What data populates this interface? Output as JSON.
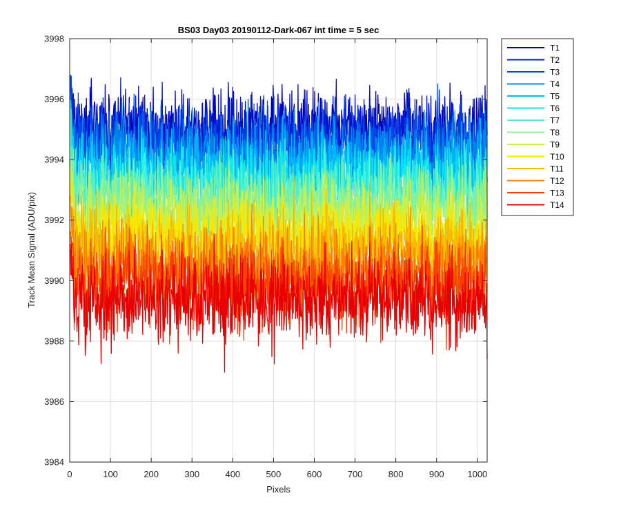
{
  "chart_data": {
    "type": "line",
    "title": "BS03 Day03 20190112-Dark-067 int time = 5 sec",
    "xlabel": "Pixels",
    "ylabel": "Track Mean Signal (ADU/pix)",
    "xlim": [
      0,
      1024
    ],
    "ylim": [
      3984,
      3998
    ],
    "xticks": [
      0,
      100,
      200,
      300,
      400,
      500,
      600,
      700,
      800,
      900,
      1000
    ],
    "yticks": [
      3984,
      3986,
      3988,
      3990,
      3992,
      3994,
      3996,
      3998
    ],
    "grid": true,
    "legend_position": "outside-top-right",
    "n_points": 1024,
    "series": [
      {
        "name": "T1",
        "color": "#0000B3",
        "mean": 3995.0,
        "spread": 0.75,
        "min": 3993.4,
        "max": 3997.5
      },
      {
        "name": "T2",
        "color": "#0018D0",
        "mean": 3994.8,
        "spread": 0.75,
        "min": 3993.2,
        "max": 3997.0
      },
      {
        "name": "T3",
        "color": "#0048E8",
        "mean": 3994.5,
        "spread": 0.75,
        "min": 3992.8,
        "max": 3996.8
      },
      {
        "name": "T4",
        "color": "#0088F0",
        "mean": 3994.1,
        "spread": 0.75,
        "min": 3992.4,
        "max": 3996.9
      },
      {
        "name": "T5",
        "color": "#00B8F8",
        "mean": 3993.7,
        "spread": 0.75,
        "min": 3992.0,
        "max": 3997.1
      },
      {
        "name": "T6",
        "color": "#10E8F0",
        "mean": 3993.3,
        "spread": 0.75,
        "min": 3991.6,
        "max": 3996.0
      },
      {
        "name": "T7",
        "color": "#58F0C8",
        "mean": 3992.9,
        "spread": 0.75,
        "min": 3991.1,
        "max": 3995.8
      },
      {
        "name": "T8",
        "color": "#90F090",
        "mean": 3992.5,
        "spread": 0.75,
        "min": 3990.7,
        "max": 3996.4
      },
      {
        "name": "T9",
        "color": "#C8F050",
        "mean": 3992.0,
        "spread": 0.75,
        "min": 3990.2,
        "max": 3995.2
      },
      {
        "name": "T10",
        "color": "#F8E800",
        "mean": 3991.5,
        "spread": 0.75,
        "min": 3989.6,
        "max": 3994.6
      },
      {
        "name": "T11",
        "color": "#F8B800",
        "mean": 3991.0,
        "spread": 0.75,
        "min": 3989.0,
        "max": 3994.0
      },
      {
        "name": "T12",
        "color": "#F88000",
        "mean": 3990.4,
        "spread": 0.8,
        "min": 3988.2,
        "max": 3993.5
      },
      {
        "name": "T13",
        "color": "#F84000",
        "mean": 3989.9,
        "spread": 0.8,
        "min": 3987.6,
        "max": 3993.2
      },
      {
        "name": "T14",
        "color": "#E80000",
        "mean": 3989.3,
        "spread": 0.8,
        "min": 3985.5,
        "max": 3992.6
      }
    ]
  }
}
